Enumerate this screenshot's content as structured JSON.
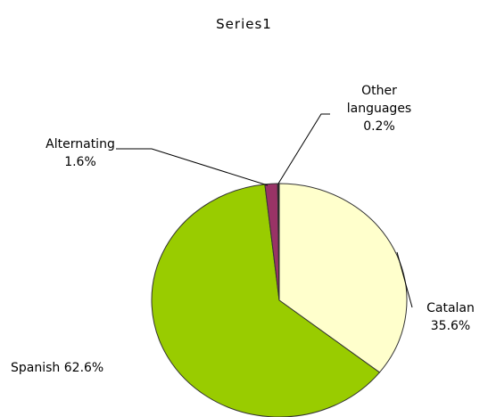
{
  "chart_data": {
    "type": "pie",
    "title": "Series1",
    "categories": [
      "Catalan",
      "Spanish",
      "Alternating",
      "Other languages"
    ],
    "values": [
      35.6,
      62.6,
      1.6,
      0.2
    ],
    "value_labels": [
      "35.6%",
      "62.6%",
      "1.6%",
      "0.2%"
    ],
    "colors": [
      "#ffffcc",
      "#99cc00",
      "#993366",
      "#1a1a1a"
    ]
  }
}
